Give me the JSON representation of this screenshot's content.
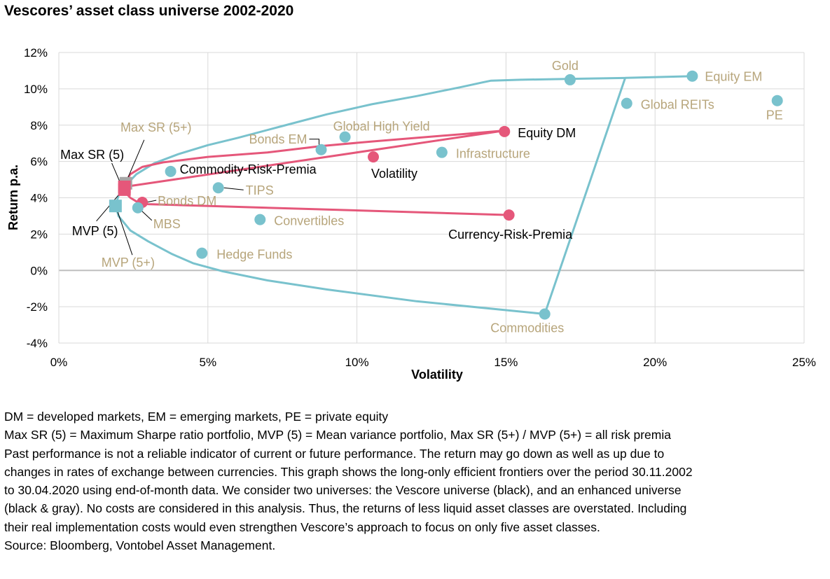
{
  "title": "Vescores’ asset class universe 2002-2020",
  "colors": {
    "teal": "#79C2CD",
    "pink": "#E5577A",
    "tan_label": "#B7A57B",
    "grid": "#D9D9D9",
    "zero_line": "#BFBFBF",
    "black_label": "#000000"
  },
  "chart_data": {
    "type": "scatter",
    "xlabel": "Volatility",
    "ylabel": "Return p.a.",
    "xlim": [
      0,
      25
    ],
    "ylim": [
      -4,
      12
    ],
    "x_ticks": [
      0,
      5,
      10,
      15,
      20,
      25
    ],
    "x_tick_labels": [
      "0%",
      "5%",
      "10%",
      "15%",
      "20%",
      "25%"
    ],
    "y_ticks": [
      12,
      10,
      8,
      6,
      4,
      2,
      0,
      -2,
      -4
    ],
    "y_tick_labels": [
      "12%",
      "10%",
      "8%",
      "6%",
      "4%",
      "2%",
      "0%",
      "-2%",
      "-4%"
    ],
    "grid": true,
    "frontiers": [
      {
        "universe": "enhanced",
        "color": "teal",
        "x": [
          1.9,
          1.95,
          2.0,
          2.2,
          2.6,
          3.2,
          4.0,
          5.0,
          6.0,
          7.5,
          9.0,
          10.5,
          12.0,
          13.5,
          14.2,
          14.5,
          15.5,
          17.2,
          19.0,
          21.3,
          21.3,
          19.0,
          16.3,
          12.0,
          9.0,
          7.0,
          5.5,
          4.5,
          3.8,
          3.0,
          2.4,
          2.0,
          1.9
        ],
        "y": [
          3.6,
          3.85,
          4.1,
          4.6,
          5.3,
          5.9,
          6.4,
          6.9,
          7.3,
          7.95,
          8.6,
          9.15,
          9.6,
          10.1,
          10.35,
          10.45,
          10.5,
          10.55,
          10.6,
          10.7,
          10.7,
          10.6,
          -2.4,
          -1.7,
          -1.05,
          -0.55,
          -0.05,
          0.4,
          0.9,
          1.6,
          2.2,
          3.0,
          3.6
        ]
      },
      {
        "universe": "vescore",
        "color": "pink",
        "x": [
          2.2,
          2.25,
          2.4,
          2.8,
          3.5,
          5.0,
          7.0,
          8.8,
          10.5,
          12.0,
          13.5,
          14.95,
          14.95,
          2.2,
          2.25,
          2.4,
          2.6,
          2.8,
          3.0,
          15.1
        ],
        "y": [
          4.6,
          4.9,
          5.3,
          5.7,
          5.95,
          6.25,
          6.5,
          6.85,
          7.1,
          7.3,
          7.5,
          7.7,
          7.7,
          4.6,
          4.25,
          4.0,
          3.8,
          3.7,
          3.65,
          3.05
        ]
      }
    ],
    "assets": [
      {
        "name": "Gold",
        "x": 17.15,
        "y": 10.5,
        "color": "teal",
        "label_color": "tan"
      },
      {
        "name": "Equity EM",
        "x": 21.25,
        "y": 10.7,
        "color": "teal",
        "label_color": "tan"
      },
      {
        "name": "Global REITs",
        "x": 19.05,
        "y": 9.2,
        "color": "teal",
        "label_color": "tan"
      },
      {
        "name": "PE",
        "x": 24.1,
        "y": 9.35,
        "color": "teal",
        "label_color": "tan"
      },
      {
        "name": "Equity DM",
        "x": 14.95,
        "y": 7.65,
        "color": "pink",
        "label_color": "black"
      },
      {
        "name": "Global High Yield",
        "x": 9.6,
        "y": 7.35,
        "color": "teal",
        "label_color": "tan"
      },
      {
        "name": "Bonds EM",
        "x": 8.8,
        "y": 6.65,
        "color": "teal",
        "label_color": "tan"
      },
      {
        "name": "Infrastructure",
        "x": 12.85,
        "y": 6.5,
        "color": "teal",
        "label_color": "tan"
      },
      {
        "name": "Volatility",
        "x": 10.55,
        "y": 6.25,
        "color": "pink",
        "label_color": "black"
      },
      {
        "name": "Commodity-Risk-Premia",
        "x": 3.75,
        "y": 5.45,
        "color": "teal",
        "label_color": "black"
      },
      {
        "name": "TIPS",
        "x": 5.35,
        "y": 4.55,
        "color": "teal",
        "label_color": "tan"
      },
      {
        "name": "Bonds DM",
        "x": 2.8,
        "y": 3.75,
        "color": "pink",
        "label_color": "tan"
      },
      {
        "name": "MBS",
        "x": 2.65,
        "y": 3.45,
        "color": "teal",
        "label_color": "tan"
      },
      {
        "name": "Convertibles",
        "x": 6.75,
        "y": 2.8,
        "color": "teal",
        "label_color": "tan"
      },
      {
        "name": "Currency-Risk-Premia",
        "x": 15.1,
        "y": 3.05,
        "color": "pink",
        "label_color": "black"
      },
      {
        "name": "Hedge Funds",
        "x": 4.8,
        "y": 0.95,
        "color": "teal",
        "label_color": "tan"
      },
      {
        "name": "Commodities",
        "x": 16.3,
        "y": -2.4,
        "color": "teal",
        "label_color": "tan"
      }
    ],
    "portfolios": [
      {
        "name": "Max SR (5+)",
        "x": 2.25,
        "y": 4.8,
        "color": "gray",
        "label_color": "tan"
      },
      {
        "name": "Max SR (5)",
        "x": 2.2,
        "y": 4.6,
        "color": "pink",
        "label_color": "black"
      },
      {
        "name": "MVP (5)",
        "x": 2.2,
        "y": 4.45,
        "color": "pink",
        "label_color": "black"
      },
      {
        "name": "MVP (5+)",
        "x": 1.9,
        "y": 3.55,
        "color": "teal",
        "label_color": "tan"
      }
    ]
  },
  "notes": [
    "DM = developed markets, EM = emerging markets, PE = private equity",
    "Max SR (5) = Maximum Sharpe ratio portfolio, MVP (5) = Mean variance portfolio, Max SR (5+) / MVP (5+) = all risk premia",
    "Past performance is not a reliable indicator of current or future performance. The return may go down as well as up due to",
    "changes in rates of exchange between currencies. This graph shows the long-only efficient frontiers over the period 30.11.2002",
    "to 30.04.2020 using end-of-month data. We consider two universes: the Vescore universe (black), and an enhanced universe",
    "(black & gray). No costs are considered in this analysis. Thus, the returns of less liquid asset classes are overstated. Including",
    "their real implementation costs would even strengthen Vescore’s approach to focus on only five asset classes.",
    "Source: Bloomberg, Vontobel Asset Management."
  ]
}
